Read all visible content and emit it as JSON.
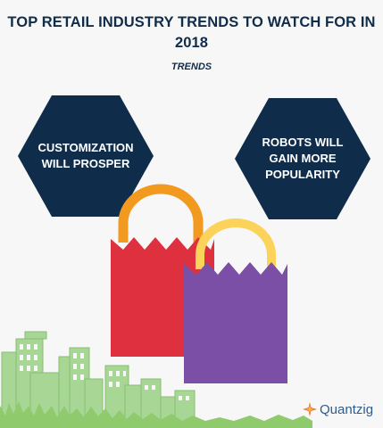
{
  "page": {
    "title": "TOP RETAIL INDUSTRY TRENDS TO WATCH FOR IN 2018",
    "subtitle": "TRENDS"
  },
  "trends": [
    {
      "label": "CUSTOMIZATION\nWILL PROSPER",
      "color": "#0f2d4a"
    },
    {
      "label": "ROBOTS WILL\nGAIN MORE\nPOPULARITY",
      "color": "#0f2d4a"
    }
  ],
  "illustration": {
    "bag_left_color": "#df3040",
    "bag_right_color": "#7b4fa6",
    "handle_left_color": "#f29a1f",
    "handle_right_color": "#fcd35a",
    "city_color": "#9fd08a",
    "grass_color": "#8fca6c"
  },
  "brand": {
    "logo_text": "Quantzig",
    "logo_icon": "quantzig-star-icon"
  }
}
